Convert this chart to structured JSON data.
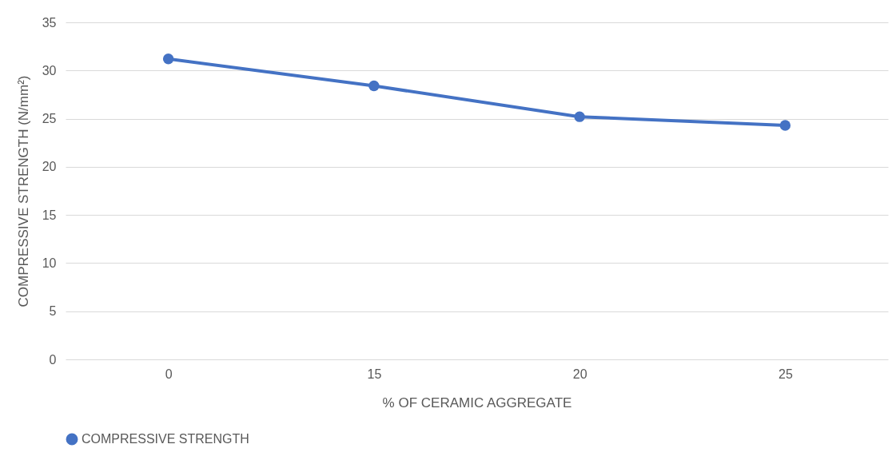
{
  "chart_data": {
    "type": "line",
    "xlabel": "% OF CERAMIC AGGREGATE",
    "ylabel": "COMPRESSIVE STRENGTH  (N/mm²)",
    "categories": [
      "0",
      "15",
      "20",
      "25"
    ],
    "series": [
      {
        "name": "COMPRESSIVE STRENGTH",
        "color": "#4472c4",
        "values": [
          31.2,
          28.4,
          25.2,
          24.3
        ]
      }
    ],
    "ylim": [
      0,
      35
    ],
    "yticks": [
      0,
      5,
      10,
      15,
      20,
      25,
      30,
      35
    ],
    "grid": "y",
    "legend": "bottom",
    "marker": "circle",
    "line_style": "solid"
  }
}
